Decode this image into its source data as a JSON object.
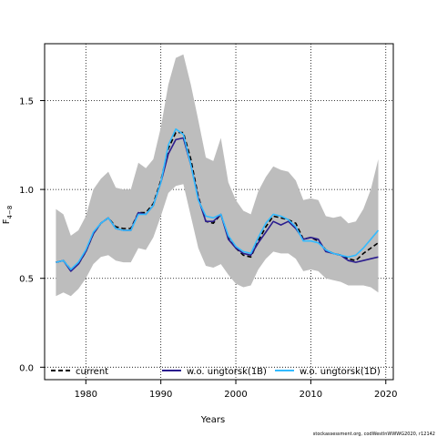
{
  "chart_data": {
    "type": "line",
    "xlabel": "Years",
    "ylabel": "F",
    "ylabel_sub": "4−8",
    "xlim": [
      1974.5,
      2021.0
    ],
    "ylim": [
      -0.07,
      1.82
    ],
    "x_ticks": [
      1980,
      1990,
      2000,
      2010,
      2020
    ],
    "y_ticks": [
      0.0,
      0.5,
      1.0,
      1.5
    ],
    "x_tick_labels": [
      "1980",
      "1990",
      "2000",
      "2010",
      "2020"
    ],
    "y_tick_labels": [
      "0.0",
      "0.5",
      "1.0",
      "1.5"
    ],
    "grid": true,
    "legend_position": "bottom",
    "credit": "stockassessment.org, codWestlnWWWG2020, r12142",
    "years": [
      1976,
      1977,
      1978,
      1979,
      1980,
      1981,
      1982,
      1983,
      1984,
      1985,
      1986,
      1987,
      1988,
      1989,
      1990,
      1991,
      1992,
      1993,
      1994,
      1995,
      1996,
      1997,
      1998,
      1999,
      2000,
      2001,
      2002,
      2003,
      2004,
      2005,
      2006,
      2007,
      2008,
      2009,
      2010,
      2011,
      2012,
      2013,
      2014,
      2015,
      2016,
      2017,
      2018,
      2019
    ],
    "band": {
      "upper": [
        0.89,
        0.86,
        0.74,
        0.77,
        0.85,
        1.0,
        1.06,
        1.1,
        1.01,
        1.0,
        1.0,
        1.15,
        1.12,
        1.17,
        1.35,
        1.59,
        1.74,
        1.76,
        1.59,
        1.39,
        1.18,
        1.16,
        1.29,
        1.04,
        0.94,
        0.88,
        0.86,
        0.99,
        1.07,
        1.13,
        1.11,
        1.1,
        1.05,
        0.94,
        0.95,
        0.94,
        0.85,
        0.84,
        0.85,
        0.81,
        0.82,
        0.89,
        1.0,
        1.17
      ],
      "lower": [
        0.4,
        0.42,
        0.4,
        0.44,
        0.5,
        0.58,
        0.62,
        0.63,
        0.6,
        0.59,
        0.59,
        0.67,
        0.66,
        0.73,
        0.85,
        0.98,
        1.02,
        1.03,
        0.85,
        0.67,
        0.57,
        0.56,
        0.58,
        0.52,
        0.47,
        0.45,
        0.46,
        0.55,
        0.61,
        0.65,
        0.64,
        0.64,
        0.61,
        0.54,
        0.55,
        0.54,
        0.5,
        0.49,
        0.48,
        0.46,
        0.46,
        0.46,
        0.45,
        0.42
      ]
    },
    "series": [
      {
        "name": "current",
        "color": "#000000",
        "dash": "5,3",
        "width": 1.6,
        "values": [
          0.59,
          0.6,
          0.55,
          0.58,
          0.65,
          0.75,
          0.81,
          0.84,
          0.79,
          0.78,
          0.78,
          0.87,
          0.87,
          0.92,
          1.05,
          1.23,
          1.32,
          1.32,
          1.17,
          0.96,
          0.82,
          0.81,
          0.86,
          0.73,
          0.67,
          0.63,
          0.62,
          0.71,
          0.79,
          0.85,
          0.84,
          0.83,
          0.81,
          0.72,
          0.73,
          0.71,
          0.66,
          0.64,
          0.63,
          0.61,
          0.6,
          0.64,
          0.67,
          0.7
        ]
      },
      {
        "name": "w.o. ungtorsk(1B)",
        "color": "#2b1d8e",
        "dash": "",
        "width": 1.6,
        "values": [
          0.59,
          0.6,
          0.54,
          0.58,
          0.65,
          0.75,
          0.81,
          0.84,
          0.78,
          0.77,
          0.77,
          0.87,
          0.86,
          0.91,
          1.04,
          1.2,
          1.28,
          1.29,
          1.14,
          0.95,
          0.82,
          0.82,
          0.86,
          0.72,
          0.67,
          0.64,
          0.63,
          0.7,
          0.76,
          0.82,
          0.8,
          0.82,
          0.78,
          0.72,
          0.73,
          0.72,
          0.65,
          0.64,
          0.63,
          0.6,
          0.59,
          0.6,
          0.61,
          0.62
        ]
      },
      {
        "name": "w.o. ungtorsk(1D)",
        "color": "#33bbff",
        "dash": "",
        "width": 1.6,
        "values": [
          0.59,
          0.6,
          0.55,
          0.59,
          0.66,
          0.76,
          0.81,
          0.84,
          0.78,
          0.77,
          0.77,
          0.86,
          0.86,
          0.91,
          1.04,
          1.25,
          1.34,
          1.31,
          1.14,
          0.94,
          0.85,
          0.84,
          0.86,
          0.74,
          0.68,
          0.65,
          0.64,
          0.73,
          0.81,
          0.86,
          0.85,
          0.83,
          0.79,
          0.71,
          0.71,
          0.7,
          0.66,
          0.64,
          0.63,
          0.62,
          0.63,
          0.67,
          0.72,
          0.77
        ]
      }
    ]
  }
}
